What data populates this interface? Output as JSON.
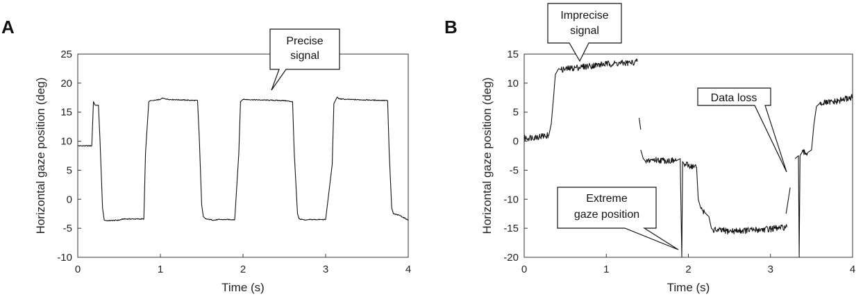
{
  "panels": [
    {
      "letter": "A",
      "callouts": [
        {
          "lines": [
            "Precise",
            "signal"
          ]
        }
      ]
    },
    {
      "letter": "B",
      "callouts": [
        {
          "lines": [
            "Imprecise",
            "signal"
          ]
        },
        {
          "lines": [
            "Data loss"
          ]
        },
        {
          "lines": [
            "Extreme",
            "gaze position"
          ]
        }
      ]
    }
  ],
  "chart_data": [
    {
      "type": "line",
      "xlabel": "Time (s)",
      "ylabel": "Horizontal gaze position (deg)",
      "xlim": [
        0,
        4
      ],
      "ylim": [
        -10,
        25
      ],
      "xticks": [
        0,
        1,
        2,
        3,
        4
      ],
      "yticks": [
        -10,
        -5,
        0,
        5,
        10,
        15,
        20,
        25
      ],
      "grid": false,
      "series": [
        {
          "x": [
            0,
            0.17,
            0.19,
            0.21,
            0.25,
            0.27,
            0.3,
            0.32,
            0.35,
            0.5,
            0.55,
            0.8,
            0.82,
            0.86,
            0.88,
            0.92,
            1.0,
            1.02,
            1.1,
            1.45,
            1.47,
            1.5,
            1.52,
            1.55,
            1.65,
            1.7,
            1.9,
            1.95,
            1.97,
            2.0,
            2.2,
            2.5,
            2.6,
            2.62,
            2.66,
            2.68,
            2.75,
            2.8,
            3.0,
            3.08,
            3.1,
            3.14,
            3.16,
            3.25,
            3.5,
            3.75,
            3.77,
            3.8,
            3.82,
            3.9,
            4.0
          ],
          "y": [
            9.2,
            9.2,
            16.8,
            16.2,
            16.2,
            10.0,
            -1.5,
            -3.6,
            -3.7,
            -3.6,
            -3.4,
            -3.4,
            8.0,
            16.8,
            17.0,
            17.0,
            17.2,
            17.4,
            17.2,
            17.0,
            11.0,
            -1.0,
            -3.0,
            -3.4,
            -3.6,
            -3.5,
            -3.5,
            8.0,
            16.8,
            17.2,
            17.1,
            17.0,
            16.8,
            8.0,
            -2.5,
            -3.4,
            -3.6,
            -3.5,
            -3.5,
            6.0,
            16.5,
            17.6,
            17.3,
            17.2,
            17.1,
            17.0,
            8.0,
            -1.5,
            -2.5,
            -2.8,
            -3.6
          ]
        }
      ]
    },
    {
      "type": "line",
      "xlabel": "Time (s)",
      "ylabel": "Horizontal gaze position (deg)",
      "xlim": [
        0,
        4
      ],
      "ylim": [
        -20,
        15
      ],
      "xticks": [
        0,
        1,
        2,
        3,
        4
      ],
      "yticks": [
        -20,
        -15,
        -10,
        -5,
        0,
        5,
        10,
        15
      ],
      "grid": false,
      "series": [
        {
          "x": [
            0,
            0.3,
            0.33,
            0.36,
            0.38,
            0.4,
            0.42,
            0.45,
            0.7,
            1.0,
            1.3,
            1.38
          ],
          "y": [
            0.5,
            1.0,
            3.0,
            8.0,
            11.5,
            12.0,
            12.5,
            12.3,
            12.8,
            13.3,
            13.5,
            13.7
          ]
        },
        {
          "x": [
            1.4,
            1.42
          ],
          "y": [
            4.0,
            2.0
          ]
        },
        {
          "x": [
            1.42,
            1.45,
            1.48,
            1.55,
            1.7,
            1.85,
            1.9,
            1.92,
            1.93,
            1.95,
            2.1,
            2.12,
            2.15,
            2.2,
            2.25,
            2.28,
            2.3,
            2.5,
            2.8,
            3.1,
            3.2
          ],
          "y": [
            -1.5,
            -3.0,
            -3.5,
            -3.2,
            -3.3,
            -3.4,
            -3.0,
            -20.0,
            -3.5,
            -4.0,
            -4.5,
            -10.0,
            -11.5,
            -12.3,
            -13.0,
            -15.0,
            -15.3,
            -15.5,
            -15.3,
            -15.0,
            -14.8
          ]
        },
        {
          "x": [
            3.19,
            3.24
          ],
          "y": [
            -12.5,
            -8.0
          ]
        },
        {
          "x": [
            3.3,
            3.34,
            3.35,
            3.36,
            3.38,
            3.45,
            3.5,
            3.53,
            3.56,
            3.6,
            3.8,
            4.0
          ],
          "y": [
            -3.0,
            -2.5,
            -20.0,
            -2.5,
            -2.0,
            -2.0,
            -1.5,
            3.0,
            6.0,
            6.5,
            6.8,
            7.6
          ]
        }
      ]
    }
  ]
}
